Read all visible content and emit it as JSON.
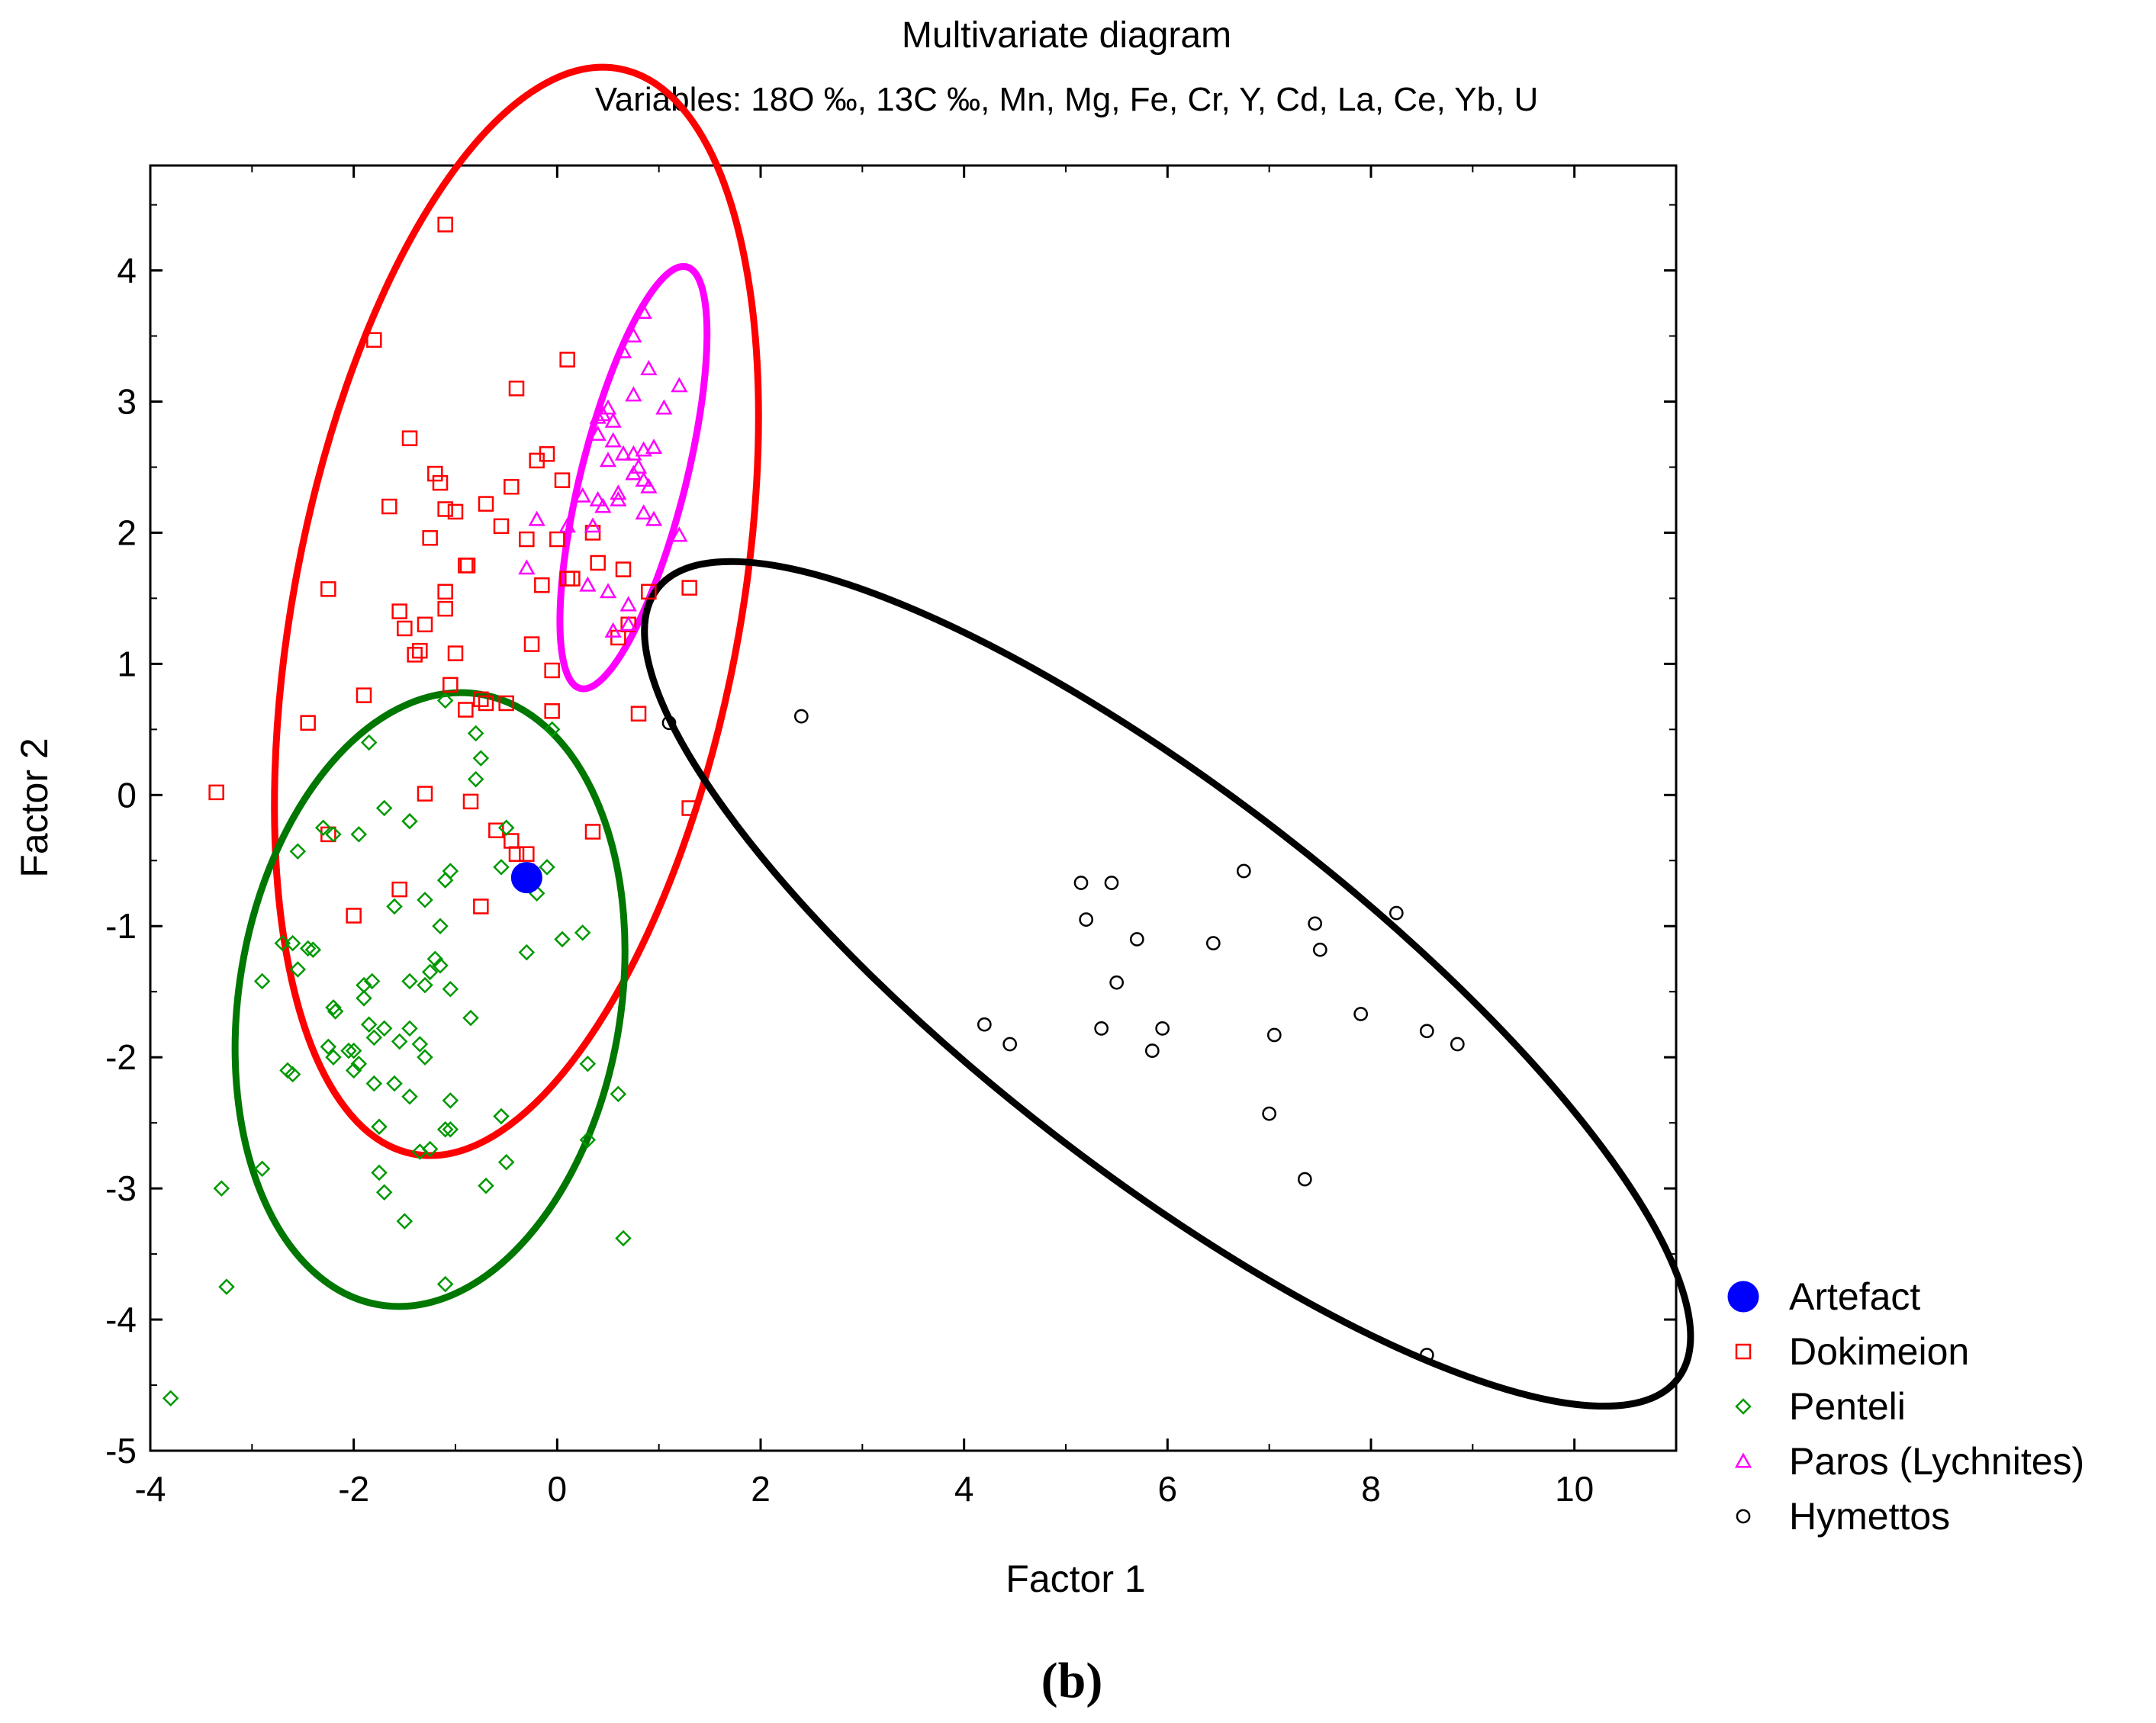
{
  "caption": "(b)",
  "chart_data": {
    "type": "scatter",
    "title": "Multivariate diagram",
    "subtitle": "Variables: 18O ‰, 13C ‰, Mn, Mg, Fe, Cr, Y, Cd, La, Ce, Yb, U",
    "xlabel": "Factor 1",
    "ylabel": "Factor 2",
    "xlim": [
      -4,
      11
    ],
    "ylim": [
      -5,
      4.8
    ],
    "xticks": [
      -4,
      -2,
      0,
      2,
      4,
      6,
      8,
      10
    ],
    "yticks": [
      -5,
      -4,
      -3,
      -2,
      -1,
      0,
      1,
      2,
      3,
      4
    ],
    "grid": false,
    "legend_position": "right",
    "series": [
      {
        "name": "Artefact",
        "marker": "filled-circle",
        "color": "#0000ff",
        "points": [
          [
            -0.3,
            -0.63
          ]
        ]
      },
      {
        "name": "Dokimeion",
        "marker": "square",
        "color": "#ff0000",
        "points": [
          [
            -1.1,
            4.35
          ],
          [
            -1.8,
            3.47
          ],
          [
            -0.4,
            3.1
          ],
          [
            0.1,
            3.32
          ],
          [
            -1.45,
            2.72
          ],
          [
            -1.2,
            2.45
          ],
          [
            -1.15,
            2.38
          ],
          [
            -0.45,
            2.35
          ],
          [
            -0.7,
            2.22
          ],
          [
            -1.65,
            2.2
          ],
          [
            -1.1,
            2.18
          ],
          [
            -1.0,
            2.16
          ],
          [
            -0.55,
            2.05
          ],
          [
            -1.25,
            1.96
          ],
          [
            -0.3,
            1.95
          ],
          [
            -0.2,
            2.55
          ],
          [
            -0.1,
            2.6
          ],
          [
            0.05,
            2.4
          ],
          [
            0.35,
            2.0
          ],
          [
            0.0,
            1.95
          ],
          [
            -0.9,
            1.75
          ],
          [
            -0.88,
            1.75
          ],
          [
            -0.15,
            1.6
          ],
          [
            0.1,
            1.65
          ],
          [
            0.15,
            1.65
          ],
          [
            0.4,
            1.77
          ],
          [
            0.65,
            1.72
          ],
          [
            0.9,
            1.55
          ],
          [
            1.3,
            1.58
          ],
          [
            -2.25,
            1.57
          ],
          [
            -1.1,
            1.55
          ],
          [
            -1.1,
            1.42
          ],
          [
            -1.55,
            1.4
          ],
          [
            -1.5,
            1.27
          ],
          [
            -1.3,
            1.3
          ],
          [
            -1.35,
            1.1
          ],
          [
            -1.4,
            1.07
          ],
          [
            -1.0,
            1.08
          ],
          [
            -0.25,
            1.15
          ],
          [
            0.7,
            1.3
          ],
          [
            0.6,
            1.2
          ],
          [
            -0.05,
            0.95
          ],
          [
            -1.05,
            0.84
          ],
          [
            -1.9,
            0.76
          ],
          [
            -0.5,
            0.7
          ],
          [
            -0.7,
            0.7
          ],
          [
            -0.75,
            0.73
          ],
          [
            -0.9,
            0.65
          ],
          [
            -0.05,
            0.64
          ],
          [
            0.8,
            0.62
          ],
          [
            -2.45,
            0.55
          ],
          [
            -3.35,
            0.02
          ],
          [
            -1.3,
            0.01
          ],
          [
            -0.85,
            -0.05
          ],
          [
            1.3,
            -0.1
          ],
          [
            -0.6,
            -0.27
          ],
          [
            -0.45,
            -0.35
          ],
          [
            -0.4,
            -0.45
          ],
          [
            -0.3,
            -0.45
          ],
          [
            -0.3,
            -0.58
          ],
          [
            -2.25,
            -0.3
          ],
          [
            -1.55,
            -0.72
          ],
          [
            -0.75,
            -0.85
          ],
          [
            -2.0,
            -0.92
          ],
          [
            0.35,
            -0.28
          ]
        ]
      },
      {
        "name": "Penteli",
        "marker": "diamond",
        "color": "#009900",
        "points": [
          [
            -1.1,
            0.72
          ],
          [
            -0.05,
            0.5
          ],
          [
            -0.8,
            0.47
          ],
          [
            -1.85,
            0.4
          ],
          [
            -0.75,
            0.28
          ],
          [
            -0.8,
            0.12
          ],
          [
            -1.7,
            -0.1
          ],
          [
            -1.45,
            -0.2
          ],
          [
            -2.3,
            -0.25
          ],
          [
            -2.2,
            -0.3
          ],
          [
            -1.95,
            -0.3
          ],
          [
            -2.55,
            -0.43
          ],
          [
            -1.05,
            -0.58
          ],
          [
            -1.1,
            -0.65
          ],
          [
            -0.55,
            -0.55
          ],
          [
            -0.1,
            -0.55
          ],
          [
            -0.2,
            -0.75
          ],
          [
            -0.5,
            -0.25
          ],
          [
            -1.3,
            -0.8
          ],
          [
            -1.6,
            -0.85
          ],
          [
            -1.15,
            -1.0
          ],
          [
            0.05,
            -1.1
          ],
          [
            0.25,
            -1.05
          ],
          [
            -0.3,
            -1.2
          ],
          [
            -2.7,
            -1.13
          ],
          [
            -2.6,
            -1.13
          ],
          [
            -2.45,
            -1.17
          ],
          [
            -2.4,
            -1.18
          ],
          [
            -1.2,
            -1.25
          ],
          [
            -1.15,
            -1.3
          ],
          [
            -1.25,
            -1.35
          ],
          [
            -2.55,
            -1.33
          ],
          [
            -1.45,
            -1.42
          ],
          [
            -1.3,
            -1.45
          ],
          [
            -1.05,
            -1.48
          ],
          [
            -1.9,
            -1.45
          ],
          [
            -1.82,
            -1.42
          ],
          [
            -2.9,
            -1.42
          ],
          [
            -1.9,
            -1.55
          ],
          [
            -2.2,
            -1.62
          ],
          [
            -2.18,
            -1.65
          ],
          [
            -0.85,
            -1.7
          ],
          [
            -1.85,
            -1.75
          ],
          [
            -1.7,
            -1.78
          ],
          [
            -1.45,
            -1.78
          ],
          [
            -1.8,
            -1.85
          ],
          [
            -1.55,
            -1.88
          ],
          [
            -1.35,
            -1.9
          ],
          [
            -2.25,
            -1.92
          ],
          [
            -2.05,
            -1.95
          ],
          [
            -2.0,
            -1.95
          ],
          [
            -2.2,
            -2.0
          ],
          [
            -1.95,
            -2.05
          ],
          [
            -1.3,
            -2.0
          ],
          [
            -2.0,
            -2.1
          ],
          [
            -2.65,
            -2.1
          ],
          [
            -2.6,
            -2.13
          ],
          [
            -1.8,
            -2.2
          ],
          [
            -1.6,
            -2.2
          ],
          [
            0.3,
            -2.05
          ],
          [
            -1.45,
            -2.3
          ],
          [
            -1.05,
            -2.33
          ],
          [
            -0.55,
            -2.45
          ],
          [
            0.6,
            -2.28
          ],
          [
            -1.05,
            -2.55
          ],
          [
            -1.1,
            -2.55
          ],
          [
            -1.75,
            -2.53
          ],
          [
            -1.35,
            -2.72
          ],
          [
            -1.25,
            -2.7
          ],
          [
            -0.5,
            -2.8
          ],
          [
            0.3,
            -2.63
          ],
          [
            -2.9,
            -2.85
          ],
          [
            -1.75,
            -2.88
          ],
          [
            -0.7,
            -2.98
          ],
          [
            -3.3,
            -3.0
          ],
          [
            -1.7,
            -3.03
          ],
          [
            -1.5,
            -3.25
          ],
          [
            0.65,
            -3.38
          ],
          [
            -1.1,
            -3.73
          ],
          [
            -3.25,
            -3.75
          ],
          [
            -3.8,
            -4.6
          ]
        ]
      },
      {
        "name": "Paros (Lychnites)",
        "marker": "triangle",
        "color": "#ff00ff",
        "points": [
          [
            0.85,
            3.68
          ],
          [
            0.75,
            3.5
          ],
          [
            0.65,
            3.38
          ],
          [
            0.9,
            3.25
          ],
          [
            1.2,
            3.12
          ],
          [
            0.75,
            3.05
          ],
          [
            0.5,
            2.95
          ],
          [
            0.45,
            2.9
          ],
          [
            0.55,
            2.85
          ],
          [
            0.4,
            2.88
          ],
          [
            1.05,
            2.95
          ],
          [
            0.4,
            2.75
          ],
          [
            0.55,
            2.7
          ],
          [
            0.65,
            2.6
          ],
          [
            0.75,
            2.6
          ],
          [
            0.85,
            2.63
          ],
          [
            0.95,
            2.65
          ],
          [
            0.5,
            2.55
          ],
          [
            0.8,
            2.5
          ],
          [
            0.75,
            2.45
          ],
          [
            0.85,
            2.4
          ],
          [
            0.9,
            2.35
          ],
          [
            0.6,
            2.3
          ],
          [
            0.25,
            2.28
          ],
          [
            0.4,
            2.25
          ],
          [
            0.6,
            2.25
          ],
          [
            0.45,
            2.2
          ],
          [
            0.85,
            2.15
          ],
          [
            0.1,
            2.05
          ],
          [
            0.95,
            2.1
          ],
          [
            -0.2,
            2.1
          ],
          [
            0.35,
            2.05
          ],
          [
            1.2,
            1.98
          ],
          [
            -0.3,
            1.73
          ],
          [
            0.3,
            1.6
          ],
          [
            0.5,
            1.55
          ],
          [
            0.7,
            1.45
          ],
          [
            0.7,
            1.3
          ],
          [
            0.55,
            1.25
          ]
        ]
      },
      {
        "name": "Hymettos",
        "marker": "circle",
        "color": "#000000",
        "points": [
          [
            2.4,
            0.6
          ],
          [
            1.1,
            0.55
          ],
          [
            6.75,
            -0.58
          ],
          [
            5.15,
            -0.67
          ],
          [
            5.45,
            -0.67
          ],
          [
            5.2,
            -0.95
          ],
          [
            8.25,
            -0.9
          ],
          [
            7.45,
            -0.98
          ],
          [
            5.7,
            -1.1
          ],
          [
            6.45,
            -1.13
          ],
          [
            7.5,
            -1.18
          ],
          [
            5.5,
            -1.43
          ],
          [
            7.9,
            -1.67
          ],
          [
            4.2,
            -1.75
          ],
          [
            5.35,
            -1.78
          ],
          [
            5.95,
            -1.78
          ],
          [
            8.55,
            -1.8
          ],
          [
            7.05,
            -1.83
          ],
          [
            4.45,
            -1.9
          ],
          [
            8.85,
            -1.9
          ],
          [
            5.85,
            -1.95
          ],
          [
            7.0,
            -2.43
          ],
          [
            7.35,
            -2.93
          ],
          [
            8.55,
            -4.27
          ]
        ]
      }
    ],
    "ellipses": [
      {
        "series": "Dokimeion",
        "color": "#ff0000",
        "center": [
          -0.4,
          1.4
        ],
        "rx": 4.26,
        "ry": 2.15,
        "angle_deg": 76.2
      },
      {
        "series": "Penteli",
        "color": "#007700",
        "center": [
          -1.25,
          -1.56
        ],
        "rx": 2.38,
        "ry": 1.85,
        "angle_deg": 78.0
      },
      {
        "series": "Paros (Lychnites)",
        "color": "#ff00ff",
        "center": [
          0.75,
          2.42
        ],
        "rx": 1.69,
        "ry": 0.5,
        "angle_deg": 72.0
      },
      {
        "series": "Hymettos",
        "color": "#000000",
        "center": [
          6.0,
          -1.44
        ],
        "rx": 5.85,
        "ry": 1.52,
        "angle_deg": -31.0
      }
    ]
  }
}
